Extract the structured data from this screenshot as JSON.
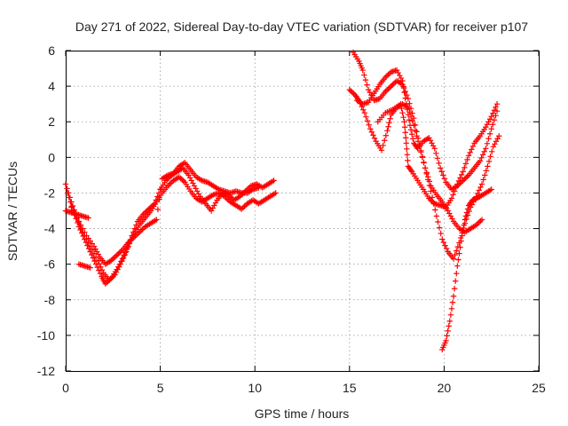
{
  "chart_data": {
    "type": "scatter",
    "title": "Day 271 of 2022, Sidereal Day-to-day VTEC variation (SDTVAR) for receiver p107",
    "xlabel": "GPS time / hours",
    "ylabel": "SDTVAR / TECUs",
    "xlim": [
      0,
      25
    ],
    "ylim": [
      -12,
      6
    ],
    "x_ticks": [
      0,
      5,
      10,
      15,
      20,
      25
    ],
    "y_ticks": [
      -12,
      -10,
      -8,
      -6,
      -4,
      -2,
      0,
      2,
      4,
      6
    ],
    "grid": true,
    "legend": "none",
    "marker": "+",
    "color": "#ff0000",
    "series": [
      {
        "points": [
          [
            0,
            -1.5
          ],
          [
            0.3,
            -2.5
          ],
          [
            0.6,
            -3.4
          ],
          [
            0.9,
            -4.2
          ],
          [
            1.3,
            -5.0
          ],
          [
            1.7,
            -5.8
          ],
          [
            2.0,
            -6.5
          ],
          [
            2.3,
            -6.9
          ],
          [
            2.6,
            -6.6
          ],
          [
            2.9,
            -6.0
          ],
          [
            3.2,
            -5.3
          ],
          [
            3.5,
            -4.4
          ],
          [
            3.8,
            -3.6
          ],
          [
            4.1,
            -3.2
          ],
          [
            4.4,
            -2.9
          ],
          [
            4.7,
            -2.6
          ],
          [
            5.0,
            -1.8
          ],
          [
            5.3,
            -1.3
          ],
          [
            5.6,
            -1.0
          ],
          [
            5.9,
            -0.8
          ],
          [
            6.2,
            -0.6
          ],
          [
            6.5,
            -1.0
          ],
          [
            6.8,
            -1.6
          ],
          [
            7.1,
            -2.2
          ],
          [
            7.4,
            -2.6
          ],
          [
            7.7,
            -3.0
          ],
          [
            8.0,
            -2.4
          ],
          [
            8.3,
            -2.0
          ],
          [
            8.6,
            -2.1
          ],
          [
            8.9,
            -2.4
          ],
          [
            9.2,
            -2.2
          ],
          [
            9.5,
            -1.9
          ],
          [
            9.8,
            -1.6
          ],
          [
            10.1,
            -1.5
          ],
          [
            10.4,
            -1.7
          ],
          [
            10.7,
            -1.5
          ],
          [
            11.0,
            -1.3
          ]
        ]
      },
      {
        "points": [
          [
            0.1,
            -2.0
          ],
          [
            0.4,
            -3.0
          ],
          [
            0.7,
            -3.9
          ],
          [
            1.0,
            -4.6
          ],
          [
            1.3,
            -5.3
          ],
          [
            1.6,
            -6.0
          ],
          [
            1.9,
            -6.7
          ],
          [
            2.1,
            -7.1
          ],
          [
            2.4,
            -6.8
          ],
          [
            2.7,
            -6.3
          ],
          [
            3.0,
            -5.7
          ],
          [
            3.3,
            -5.0
          ],
          [
            3.6,
            -4.3
          ],
          [
            3.9,
            -3.8
          ],
          [
            4.2,
            -3.4
          ],
          [
            4.5,
            -3.0
          ],
          [
            4.8,
            -2.5
          ],
          [
            5.1,
            -2.0
          ],
          [
            5.4,
            -1.6
          ],
          [
            5.7,
            -1.3
          ],
          [
            6.0,
            -1.1
          ],
          [
            6.3,
            -1.4
          ],
          [
            6.6,
            -1.9
          ],
          [
            6.9,
            -2.3
          ],
          [
            7.2,
            -2.5
          ],
          [
            7.5,
            -2.3
          ],
          [
            7.8,
            -2.1
          ],
          [
            8.1,
            -2.0
          ],
          [
            8.4,
            -2.2
          ],
          [
            8.7,
            -2.5
          ],
          [
            9.0,
            -2.7
          ],
          [
            9.3,
            -2.9
          ],
          [
            9.6,
            -2.6
          ],
          [
            9.9,
            -2.4
          ],
          [
            10.2,
            -2.6
          ],
          [
            10.5,
            -2.4
          ],
          [
            10.8,
            -2.2
          ],
          [
            11.1,
            -2.0
          ]
        ]
      },
      {
        "points": [
          [
            0.3,
            -2.8
          ],
          [
            0.7,
            -3.6
          ],
          [
            1.1,
            -4.4
          ],
          [
            1.5,
            -5.0
          ],
          [
            1.8,
            -5.6
          ],
          [
            2.1,
            -6.0
          ],
          [
            2.4,
            -5.8
          ],
          [
            2.7,
            -5.5
          ],
          [
            3.0,
            -5.2
          ],
          [
            3.3,
            -4.8
          ],
          [
            3.6,
            -4.5
          ],
          [
            3.9,
            -4.2
          ],
          [
            4.2,
            -3.9
          ],
          [
            4.5,
            -3.7
          ],
          [
            4.8,
            -3.5
          ],
          [
            5.1,
            -1.2
          ],
          [
            5.4,
            -1.0
          ],
          [
            5.7,
            -0.9
          ],
          [
            6.0,
            -0.5
          ],
          [
            6.3,
            -0.3
          ],
          [
            6.6,
            -0.7
          ],
          [
            6.9,
            -1.1
          ],
          [
            7.2,
            -1.3
          ],
          [
            7.5,
            -1.4
          ],
          [
            7.8,
            -1.6
          ],
          [
            8.1,
            -1.8
          ],
          [
            8.4,
            -1.9
          ],
          [
            8.7,
            -2.0
          ],
          [
            9.0,
            -1.9
          ],
          [
            9.3,
            -2.0
          ],
          [
            9.6,
            -2.0
          ],
          [
            9.9,
            -1.8
          ],
          [
            10.2,
            -1.7
          ]
        ]
      },
      {
        "points": [
          [
            0.0,
            -3.0
          ],
          [
            0.3,
            -3.1
          ],
          [
            0.6,
            -3.2
          ],
          [
            0.9,
            -3.3
          ],
          [
            1.2,
            -3.4
          ]
        ]
      },
      {
        "points": [
          [
            0.7,
            -6.0
          ],
          [
            1.0,
            -6.1
          ],
          [
            1.3,
            -6.2
          ]
        ]
      },
      {
        "points": [
          [
            15.0,
            3.8
          ],
          [
            15.3,
            3.5
          ],
          [
            15.5,
            3.2
          ],
          [
            15.8,
            2.5
          ],
          [
            16.1,
            1.6
          ],
          [
            16.4,
            0.9
          ],
          [
            16.7,
            0.4
          ],
          [
            17.0,
            1.5
          ],
          [
            17.2,
            2.4
          ],
          [
            17.5,
            2.8
          ],
          [
            17.8,
            3.0
          ],
          [
            18.1,
            2.8
          ],
          [
            18.4,
            1.8
          ],
          [
            18.7,
            0.6
          ],
          [
            19.0,
            -0.6
          ],
          [
            19.3,
            -1.6
          ],
          [
            19.6,
            -2.1
          ],
          [
            19.9,
            -2.5
          ],
          [
            20.2,
            -3.0
          ],
          [
            20.5,
            -3.6
          ],
          [
            20.8,
            -4.0
          ],
          [
            21.1,
            -4.2
          ],
          [
            21.4,
            -4.0
          ],
          [
            21.7,
            -3.8
          ],
          [
            22.0,
            -3.5
          ]
        ]
      },
      {
        "points": [
          [
            15.2,
            5.9
          ],
          [
            15.5,
            5.4
          ],
          [
            15.7,
            4.9
          ],
          [
            16.0,
            3.8
          ],
          [
            16.3,
            3.2
          ],
          [
            16.6,
            3.3
          ],
          [
            16.9,
            3.7
          ],
          [
            17.2,
            4.0
          ],
          [
            17.5,
            4.3
          ],
          [
            17.8,
            4.1
          ],
          [
            18.1,
            3.3
          ],
          [
            18.4,
            2.2
          ],
          [
            18.7,
            0.7
          ],
          [
            19.0,
            -0.6
          ],
          [
            19.3,
            -1.9
          ],
          [
            19.6,
            -3.3
          ],
          [
            19.9,
            -4.6
          ],
          [
            20.2,
            -5.3
          ],
          [
            20.5,
            -5.7
          ],
          [
            20.8,
            -4.8
          ],
          [
            21.1,
            -3.7
          ],
          [
            21.4,
            -2.8
          ],
          [
            21.7,
            -2.2
          ],
          [
            22.0,
            -1.5
          ],
          [
            22.3,
            -0.5
          ],
          [
            22.6,
            0.6
          ],
          [
            22.9,
            1.2
          ]
        ]
      },
      {
        "points": [
          [
            15.4,
            3.2
          ],
          [
            15.7,
            3.0
          ],
          [
            16.0,
            3.1
          ],
          [
            16.3,
            3.6
          ],
          [
            16.6,
            4.1
          ],
          [
            16.9,
            4.5
          ],
          [
            17.2,
            4.8
          ],
          [
            17.5,
            4.9
          ],
          [
            17.8,
            4.3
          ],
          [
            18.0,
            3.0
          ],
          [
            18.2,
            1.8
          ],
          [
            18.4,
            0.8
          ],
          [
            18.6,
            0.5
          ],
          [
            18.9,
            0.9
          ],
          [
            19.2,
            1.1
          ],
          [
            19.5,
            0.5
          ],
          [
            19.8,
            -0.6
          ],
          [
            20.1,
            -1.4
          ],
          [
            20.4,
            -1.8
          ],
          [
            20.7,
            -1.6
          ],
          [
            21.0,
            -1.3
          ],
          [
            21.3,
            -1.0
          ],
          [
            21.6,
            -0.6
          ],
          [
            21.9,
            -0.2
          ],
          [
            22.2,
            0.5
          ],
          [
            22.5,
            1.6
          ],
          [
            22.8,
            2.6
          ]
        ]
      },
      {
        "points": [
          [
            16.5,
            2.0
          ],
          [
            16.9,
            2.5
          ],
          [
            17.3,
            2.7
          ],
          [
            17.7,
            3.0
          ],
          [
            17.9,
            2.0
          ],
          [
            18.0,
            0.8
          ],
          [
            18.1,
            -0.5
          ],
          [
            18.3,
            -0.8
          ],
          [
            18.6,
            -1.3
          ],
          [
            18.9,
            -1.8
          ],
          [
            19.2,
            -2.3
          ],
          [
            19.5,
            -2.6
          ],
          [
            19.8,
            -2.7
          ],
          [
            20.1,
            -2.8
          ],
          [
            20.4,
            -2.3
          ],
          [
            20.7,
            -1.5
          ],
          [
            21.0,
            -0.8
          ],
          [
            21.3,
            0.1
          ],
          [
            21.6,
            0.8
          ],
          [
            21.9,
            1.2
          ],
          [
            22.2,
            1.7
          ],
          [
            22.5,
            2.3
          ],
          [
            22.8,
            3.0
          ]
        ]
      },
      {
        "points": [
          [
            19.9,
            -10.8
          ],
          [
            20.1,
            -10.3
          ],
          [
            20.3,
            -9.2
          ],
          [
            20.5,
            -7.8
          ],
          [
            20.7,
            -6.1
          ],
          [
            20.9,
            -4.7
          ],
          [
            21.1,
            -3.5
          ],
          [
            21.3,
            -2.7
          ],
          [
            21.5,
            -2.4
          ],
          [
            21.7,
            -2.3
          ],
          [
            21.9,
            -2.2
          ],
          [
            22.2,
            -2.0
          ],
          [
            22.5,
            -1.8
          ]
        ]
      }
    ]
  }
}
